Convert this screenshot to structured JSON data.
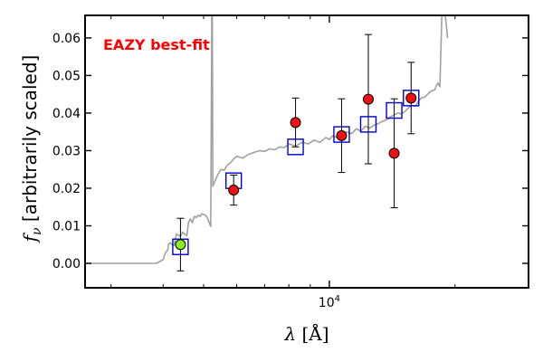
{
  "chart_data": {
    "type": "scatter",
    "title": "",
    "annotation": "EAZY best-fit",
    "xlabel": "λ [Å]",
    "ylabel": "f_ν [arbitrarily scaled]",
    "x_scale": "log",
    "xlim": [
      2600,
      30000
    ],
    "ylim": [
      -0.0065,
      0.066
    ],
    "x_major_ticks": [
      10000
    ],
    "x_major_tick_labels": [
      "10^4"
    ],
    "y_ticks": [
      0.0,
      0.01,
      0.02,
      0.03,
      0.04,
      0.05,
      0.06
    ],
    "y_tick_labels": [
      "0.00",
      "0.01",
      "0.02",
      "0.03",
      "0.04",
      "0.05",
      "0.06"
    ],
    "grid": false,
    "colors": {
      "annotation": "#ff0000",
      "template_line": "#a0a0a0",
      "model_box": "#0000cc",
      "point_fill": "#ee1111",
      "highlight_point_fill": "#88ee22",
      "error_bar": "#000000"
    },
    "template_sed": {
      "x": [
        2600,
        3850,
        4000,
        4050,
        4100,
        4120,
        4150,
        4200,
        4250,
        4300,
        4350,
        4400,
        4450,
        4500,
        4560,
        4600,
        4650,
        4700,
        4750,
        4800,
        4850,
        4900,
        4950,
        5000,
        5050,
        5100,
        5150,
        5200,
        5230,
        5245,
        5260,
        5300,
        5400,
        5500,
        5600,
        5700,
        5800,
        5900,
        6000,
        6200,
        6400,
        6600,
        6800,
        7000,
        7200,
        7400,
        7600,
        7800,
        8000,
        8300,
        8600,
        8900,
        9200,
        9500,
        9800,
        10000,
        10200,
        10400,
        10600,
        10800,
        11000,
        11300,
        11600,
        11900,
        12200,
        12500,
        12800,
        13100,
        13400,
        13700,
        14000,
        14300,
        14600,
        14900,
        15200,
        15500,
        15800,
        16100,
        16300,
        16600,
        16900,
        17200,
        17500,
        17700,
        17900,
        18000,
        18200,
        18400,
        18600,
        18800,
        19000,
        19200
      ],
      "y": [
        0.0,
        0.0,
        0.001,
        0.0028,
        0.0035,
        0.005,
        0.0055,
        0.005,
        0.0048,
        0.0078,
        0.0075,
        0.0072,
        0.0083,
        0.0078,
        0.0074,
        0.011,
        0.0118,
        0.0108,
        0.0125,
        0.0122,
        0.0128,
        0.0125,
        0.0132,
        0.013,
        0.0128,
        0.0122,
        0.011,
        0.0098,
        0.066,
        0.066,
        0.0205,
        0.0215,
        0.0235,
        0.025,
        0.0248,
        0.0262,
        0.0268,
        0.0278,
        0.0285,
        0.028,
        0.029,
        0.0295,
        0.03,
        0.0298,
        0.0305,
        0.0302,
        0.031,
        0.0308,
        0.0318,
        0.0312,
        0.0322,
        0.0318,
        0.0328,
        0.0322,
        0.0335,
        0.033,
        0.034,
        0.0335,
        0.0345,
        0.034,
        0.035,
        0.0345,
        0.0358,
        0.0352,
        0.0365,
        0.036,
        0.0368,
        0.0372,
        0.0378,
        0.0382,
        0.039,
        0.0395,
        0.04,
        0.0398,
        0.0405,
        0.0415,
        0.042,
        0.0418,
        0.043,
        0.044,
        0.0442,
        0.045,
        0.0458,
        0.046,
        0.0462,
        0.047,
        0.048,
        0.047,
        0.066,
        0.068,
        0.065,
        0.06
      ]
    },
    "model_photometry": {
      "x": [
        4400,
        5900,
        8300,
        10700,
        12400,
        14300,
        15700
      ],
      "y": [
        0.0044,
        0.022,
        0.031,
        0.0343,
        0.037,
        0.0407,
        0.044
      ]
    },
    "observed_photometry": {
      "x": [
        4400,
        5900,
        8300,
        10700,
        12400,
        14300,
        15700
      ],
      "y": [
        0.005,
        0.0195,
        0.0375,
        0.034,
        0.0437,
        0.0293,
        0.044
      ],
      "err": [
        0.007,
        0.004,
        0.0065,
        0.0098,
        0.0172,
        0.0145,
        0.0095
      ],
      "highlighted_index": 0
    }
  }
}
